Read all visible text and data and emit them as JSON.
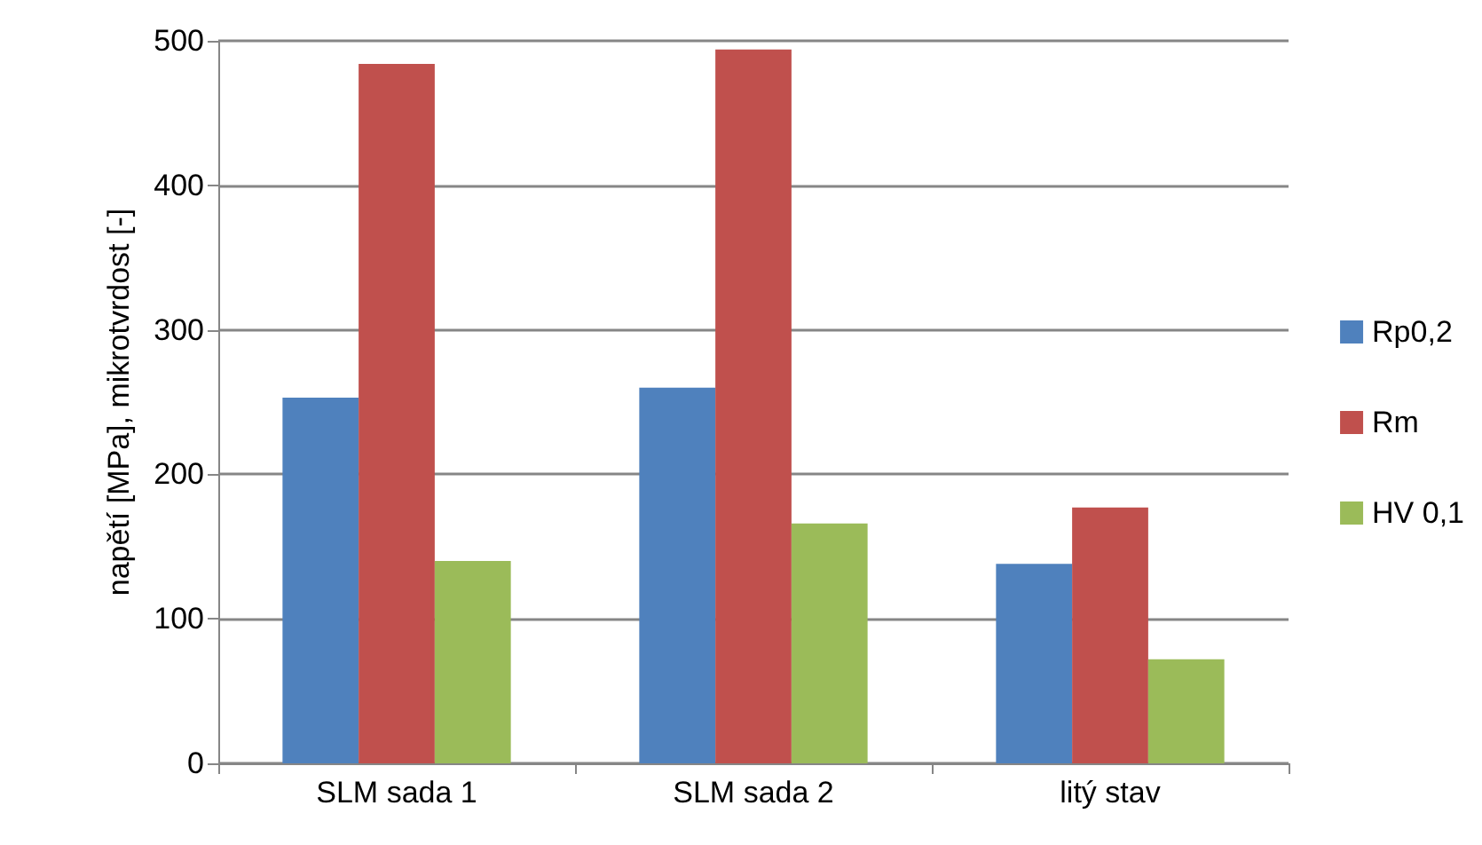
{
  "chart_data": {
    "type": "bar",
    "ylabel": "napětí [MPa], mikrotvrdost [-]",
    "categories": [
      "SLM sada 1",
      "SLM sada 2",
      "litý stav"
    ],
    "series": [
      {
        "name": "Rp0,2",
        "color": "#4f81bd",
        "values": [
          253,
          260,
          138
        ]
      },
      {
        "name": "Rm",
        "color": "#c0504d",
        "values": [
          484,
          494,
          177
        ]
      },
      {
        "name": "HV 0,1",
        "color": "#9bbb59",
        "values": [
          140,
          166,
          72
        ]
      }
    ],
    "ylim": [
      0,
      500
    ],
    "yticks": [
      0,
      100,
      200,
      300,
      400,
      500
    ],
    "grid": "y",
    "legend": "right"
  }
}
